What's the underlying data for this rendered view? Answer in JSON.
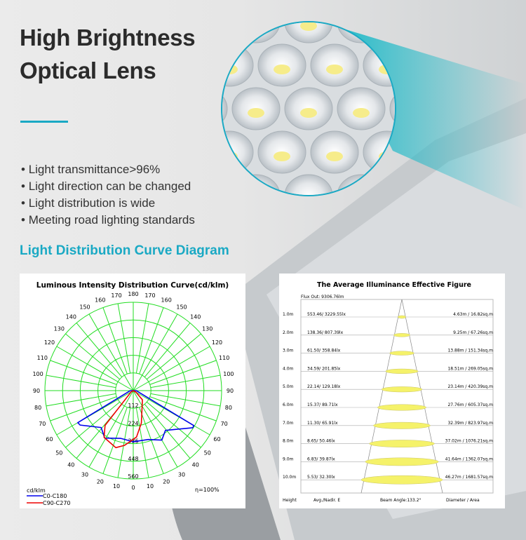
{
  "header": {
    "title_line1": "High Brightness",
    "title_line2": "Optical Lens"
  },
  "features": [
    "Light transmittance>96%",
    "Light direction can be changed",
    "Light distribution is wide",
    "Meeting road lighting standards"
  ],
  "section_title": "Light Distribution Curve Diagram",
  "colors": {
    "accent": "#1aa9c4",
    "grid": "#22dd22",
    "c0": "#0000ee",
    "c90": "#ee0000",
    "spot": "#f5f26a"
  },
  "chart_data": [
    {
      "type": "polar",
      "title": "Luminous Intensity Distribution Curve(cd/klm)",
      "unit_label": "cd/klm",
      "radial_ticks": [
        112,
        224,
        336,
        448,
        560
      ],
      "rlim": [
        0,
        560
      ],
      "angle_ticks_left": [
        180,
        170,
        160,
        150,
        140,
        130,
        120,
        110,
        100,
        90,
        80,
        70,
        60,
        50,
        40,
        30,
        20,
        10
      ],
      "angle_ticks_right": [
        170,
        160,
        150,
        140,
        130,
        120,
        110,
        100,
        90,
        80,
        70,
        60,
        50,
        40,
        30,
        20,
        10
      ],
      "angle_zero": "0",
      "efficiency": "η=100%",
      "grid": true,
      "legend_placement": "bottom-left",
      "series": [
        {
          "name": "C0-C180",
          "angles": [
            -88,
            -60,
            -57,
            -41,
            -31,
            -15,
            0,
            17,
            30,
            39,
            58,
            60,
            88
          ],
          "values": [
            20,
            406,
            401,
            310,
            351,
            313,
            324,
            324,
            362,
            324,
            444,
            443,
            20
          ]
        },
        {
          "name": "C90-C270",
          "angles": [
            -60,
            -39,
            -32,
            -17,
            -9,
            4,
            14,
            45,
            60
          ],
          "values": [
            15,
            284,
            349,
            378,
            351,
            295,
            212,
            82,
            20
          ]
        }
      ]
    },
    {
      "type": "table",
      "title": "The Average Illuminance Effective Figure",
      "flux_out": "Flux Out: 9306.76lm",
      "columns": [
        "Height",
        "Avg./Nadir. E",
        "Beam Angle:133.2°",
        "Diameter / Area"
      ],
      "beam_angle_deg": 133.2,
      "rows": [
        {
          "height": "1.0m",
          "e": "553.46/ 3229.55lx",
          "d": "4.63m / 16.82sq.m",
          "diameter": 4.63
        },
        {
          "height": "2.0m",
          "e": "138.36/ 807.39lx",
          "d": "9.25m / 67.26sq.m",
          "diameter": 9.25
        },
        {
          "height": "3.0m",
          "e": "61.50/ 358.84lx",
          "d": "13.88m / 151.34sq.m",
          "diameter": 13.88
        },
        {
          "height": "4.0m",
          "e": "34.59/ 201.85lx",
          "d": "18.51m / 269.05sq.m",
          "diameter": 18.51
        },
        {
          "height": "5.0m",
          "e": "22.14/ 129.18lx",
          "d": "23.14m / 420.39sq.m",
          "diameter": 23.14
        },
        {
          "height": "6.0m",
          "e": "15.37/ 89.71lx",
          "d": "27.76m / 605.37sq.m",
          "diameter": 27.76
        },
        {
          "height": "7.0m",
          "e": "11.30/ 65.91lx",
          "d": "32.39m / 823.97sq.m",
          "diameter": 32.39
        },
        {
          "height": "8.0m",
          "e": "8.65/ 50.46lx",
          "d": "37.02m / 1076.21sq.m",
          "diameter": 37.02
        },
        {
          "height": "9.0m",
          "e": "6.83/ 39.87lx",
          "d": "41.64m / 1362.07sq.m",
          "diameter": 41.64
        },
        {
          "height": "10.0m",
          "e": "5.53/ 32.30lx",
          "d": "46.27m / 1681.57sq.m",
          "diameter": 46.27
        }
      ]
    }
  ]
}
